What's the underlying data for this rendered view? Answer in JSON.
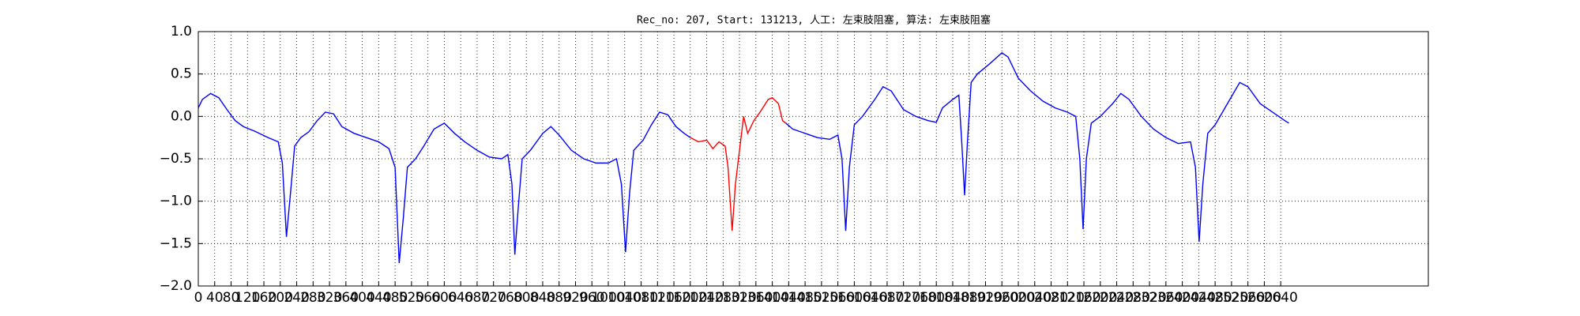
{
  "chart_data": {
    "type": "line",
    "title": "Rec_no: 207, Start: 131213, 人工: 左束肢阻塞, 算法: 左束肢阻塞",
    "xlim": [
      0,
      3000
    ],
    "xticks": [
      0,
      40,
      80,
      120,
      160,
      200,
      240,
      280,
      320,
      360,
      400,
      440,
      480,
      520,
      560,
      600,
      640,
      680,
      720,
      760,
      800,
      840,
      880,
      920,
      960,
      1000,
      1040,
      1080,
      1120,
      1160,
      1200,
      1240,
      1280,
      1320,
      1360,
      1400,
      1440,
      1480,
      1520,
      1560,
      1600,
      1640,
      1680,
      1720,
      1760,
      1800,
      1840,
      1880,
      1920,
      1960,
      2000,
      2040,
      2080,
      2120,
      2160,
      2200,
      2240,
      2280,
      2320,
      2360,
      2400,
      2440,
      2480,
      2520,
      2560,
      2600,
      2640
    ],
    "ylim": [
      -2,
      1
    ],
    "yticks": [
      {
        "value": -2,
        "label": "−2.0"
      },
      {
        "value": -1.5,
        "label": "−1.5"
      },
      {
        "value": -1,
        "label": "−1.0"
      },
      {
        "value": -0.5,
        "label": "−0.5"
      },
      {
        "value": 0,
        "label": "0.0"
      },
      {
        "value": 0.5,
        "label": "0.5"
      },
      {
        "value": 1,
        "label": "1.0"
      }
    ],
    "grid": true,
    "series": [
      {
        "color": "#0000ff",
        "x": [
          0,
          10,
          30,
          50,
          70,
          90,
          110,
          140,
          170,
          195,
          205,
          215,
          225,
          235,
          250,
          270,
          290,
          310,
          330,
          350,
          380,
          410,
          440,
          465,
          480,
          490,
          500,
          510,
          530,
          550,
          575,
          600,
          625,
          650,
          680,
          710,
          740,
          755,
          765,
          772,
          780,
          790,
          810,
          840,
          860,
          880,
          910,
          940,
          970,
          1000,
          1020,
          1032,
          1042,
          1052,
          1062,
          1085,
          1105,
          1125,
          1145,
          1165,
          1185,
          1200,
          1300,
          1433,
          1450,
          1480,
          1510,
          1540,
          1560,
          1570,
          1579,
          1588,
          1600,
          1620,
          1650,
          1670,
          1690,
          1720,
          1750,
          1780,
          1800,
          1815,
          1840,
          1855,
          1862,
          1869,
          1876,
          1885,
          1900,
          1930,
          1960,
          1975,
          2000,
          2030,
          2060,
          2090,
          2120,
          2140,
          2150,
          2158,
          2166,
          2178,
          2200,
          2230,
          2250,
          2270,
          2300,
          2330,
          2360,
          2390,
          2420,
          2432,
          2441,
          2450,
          2462,
          2480,
          2510,
          2540,
          2560,
          2590,
          2620,
          2650,
          2660
        ],
        "values": [
          0.1,
          0.2,
          0.27,
          0.22,
          0.08,
          -0.05,
          -0.12,
          -0.18,
          -0.25,
          -0.3,
          -0.55,
          -1.42,
          -0.9,
          -0.35,
          -0.25,
          -0.18,
          -0.05,
          0.05,
          0.03,
          -0.12,
          -0.2,
          -0.25,
          -0.3,
          -0.38,
          -0.6,
          -1.73,
          -1.2,
          -0.6,
          -0.5,
          -0.35,
          -0.15,
          -0.08,
          -0.2,
          -0.3,
          -0.4,
          -0.48,
          -0.5,
          -0.45,
          -0.8,
          -1.63,
          -1.1,
          -0.5,
          -0.4,
          -0.2,
          -0.12,
          -0.22,
          -0.4,
          -0.5,
          -0.55,
          -0.55,
          -0.5,
          -0.8,
          -1.6,
          -0.9,
          -0.4,
          -0.28,
          -0.1,
          0.05,
          0.02,
          -0.12,
          -0.2,
          -0.25,
          null,
          -0.08,
          -0.15,
          -0.2,
          -0.25,
          -0.27,
          -0.22,
          -0.5,
          -1.35,
          -0.6,
          -0.1,
          0,
          0.2,
          0.35,
          0.3,
          0.08,
          0,
          -0.05,
          -0.07,
          0.1,
          0.2,
          0.25,
          -0.3,
          -0.93,
          -0.3,
          0.4,
          0.5,
          0.62,
          0.75,
          0.7,
          0.45,
          0.3,
          0.18,
          0.1,
          0.05,
          0,
          -0.5,
          -1.33,
          -0.5,
          -0.08,
          0,
          0.15,
          0.27,
          0.2,
          0,
          -0.15,
          -0.25,
          -0.32,
          -0.3,
          -0.6,
          -1.48,
          -0.8,
          -0.2,
          -0.1,
          0.15,
          0.4,
          0.35,
          0.15,
          0.05,
          -0.05,
          -0.08
        ]
      },
      {
        "color": "#ff0000",
        "x": [
          1200,
          1220,
          1240,
          1255,
          1270,
          1285,
          1292,
          1302,
          1310,
          1320,
          1330,
          1340,
          1355,
          1370,
          1390,
          1400,
          1415,
          1425,
          1433
        ],
        "values": [
          -0.25,
          -0.3,
          -0.28,
          -0.38,
          -0.3,
          -0.35,
          -0.6,
          -1.35,
          -0.8,
          -0.4,
          0,
          -0.2,
          -0.05,
          0.05,
          0.2,
          0.22,
          0.15,
          -0.05,
          -0.08
        ]
      }
    ]
  }
}
